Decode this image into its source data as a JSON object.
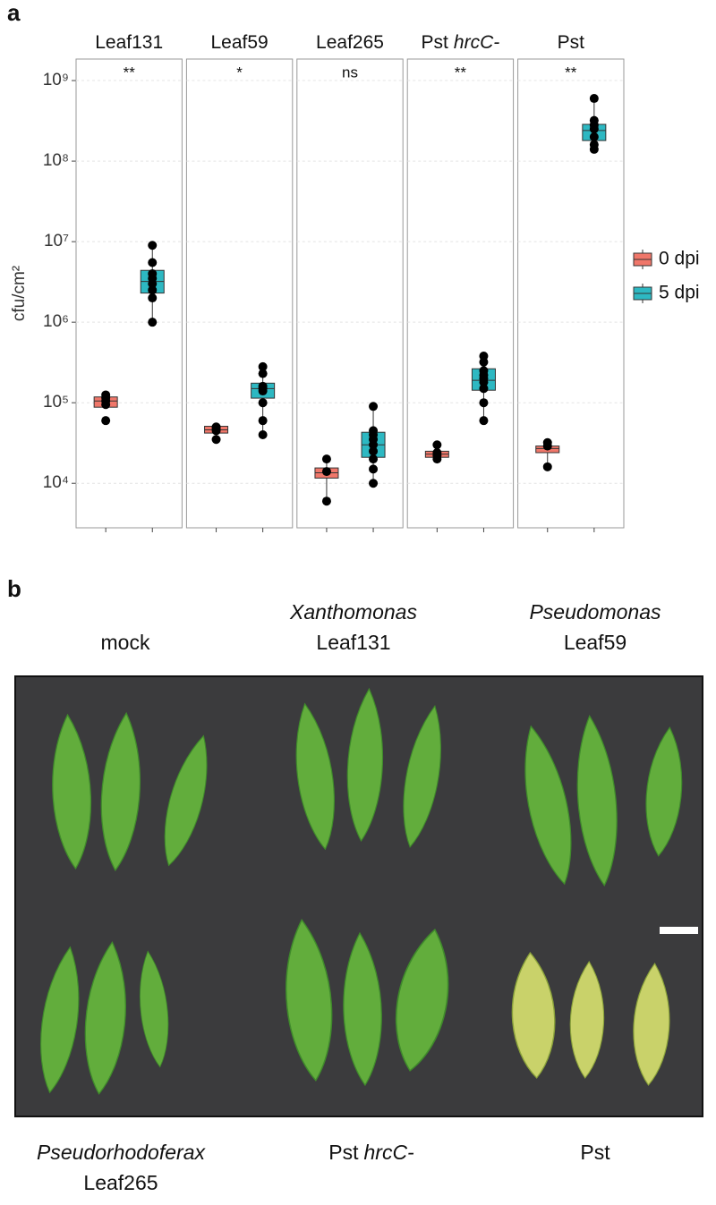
{
  "panel_labels": [
    "a",
    "b"
  ],
  "chart_data": {
    "type": "box",
    "y_label": "cfu/cm²",
    "log_y": true,
    "ylim": [
      2800,
      1850000000
    ],
    "yticks": [
      {
        "value": 10000,
        "label": "10⁴"
      },
      {
        "value": 100000,
        "label": "10⁵"
      },
      {
        "value": 1000000,
        "label": "10⁶"
      },
      {
        "value": 10000000,
        "label": "10⁷"
      },
      {
        "value": 100000000,
        "label": "10⁸"
      },
      {
        "value": 1000000000,
        "label": "10⁹"
      }
    ],
    "grid": true,
    "legend_position": "right",
    "groups": [
      {
        "name": "0 dpi",
        "color": "#f0776a"
      },
      {
        "name": "5 dpi",
        "color": "#2db8c2"
      }
    ],
    "facets": [
      {
        "label": [
          {
            "text": "Leaf131"
          }
        ],
        "significance": "**",
        "boxes": [
          {
            "min": 85000,
            "q1": 88000,
            "median": 105000,
            "q3": 118000,
            "max": 125000,
            "points": [
              125000,
              115000,
              105000,
              95000,
              60000
            ]
          },
          {
            "min": 1000000,
            "q1": 2300000,
            "median": 3200000,
            "q3": 4400000,
            "max": 9000000,
            "points": [
              9000000,
              5500000,
              4000000,
              3500000,
              3000000,
              2500000,
              2000000,
              1000000
            ]
          }
        ]
      },
      {
        "label": [
          {
            "text": "Leaf59"
          }
        ],
        "significance": "*",
        "boxes": [
          {
            "min": 35000,
            "q1": 42000,
            "median": 46000,
            "q3": 51000,
            "max": 52000,
            "points": [
              50000,
              48000,
              45000,
              35000
            ]
          },
          {
            "min": 40000,
            "q1": 114000,
            "median": 150000,
            "q3": 175000,
            "max": 280000,
            "points": [
              280000,
              230000,
              160000,
              150000,
              140000,
              100000,
              60000,
              40000
            ]
          }
        ]
      },
      {
        "label": [
          {
            "text": "Leaf265"
          }
        ],
        "significance": "ns",
        "boxes": [
          {
            "min": 6000,
            "q1": 11600,
            "median": 13500,
            "q3": 15500,
            "max": 20000,
            "points": [
              20000,
              14000,
              6000
            ]
          },
          {
            "min": 10000,
            "q1": 21000,
            "median": 30000,
            "q3": 43000,
            "max": 90000,
            "points": [
              90000,
              45000,
              40000,
              35000,
              30000,
              25000,
              20000,
              15000,
              10000
            ]
          }
        ]
      },
      {
        "label": [
          {
            "text": "Pst"
          },
          {
            "text": "hrcC-",
            "italic": true
          }
        ],
        "significance": "**",
        "boxes": [
          {
            "min": 20000,
            "q1": 21000,
            "median": 23000,
            "q3": 25000,
            "max": 30000,
            "points": [
              30000,
              24000,
              22000,
              20000
            ]
          },
          {
            "min": 60000,
            "q1": 143000,
            "median": 190000,
            "q3": 264000,
            "max": 380000,
            "points": [
              380000,
              320000,
              250000,
              220000,
              200000,
              180000,
              150000,
              100000,
              60000
            ]
          }
        ]
      },
      {
        "label": [
          {
            "text": "Pst"
          }
        ],
        "significance": "**",
        "boxes": [
          {
            "min": 16000,
            "q1": 24000,
            "median": 27000,
            "q3": 29000,
            "max": 32000,
            "points": [
              32000,
              29000,
              16000
            ]
          },
          {
            "min": 140000000,
            "q1": 180000000,
            "median": 240000000,
            "q3": 286000000,
            "max": 600000000,
            "points": [
              600000000,
              320000000,
              280000000,
              250000000,
              200000000,
              160000000,
              140000000
            ]
          }
        ]
      }
    ]
  },
  "photo": {
    "labels": [
      {
        "lines": [
          [
            {
              "text": "mock"
            }
          ]
        ]
      },
      {
        "lines": [
          [
            {
              "text": "Xanthomonas",
              "italic": true
            }
          ],
          [
            {
              "text": "Leaf131"
            }
          ]
        ]
      },
      {
        "lines": [
          [
            {
              "text": "Pseudomonas",
              "italic": true
            }
          ],
          [
            {
              "text": "Leaf59"
            }
          ]
        ]
      },
      {
        "lines": [
          [
            {
              "text": "Pseudorhodoferax",
              "italic": true
            }
          ],
          [
            {
              "text": "Leaf265"
            }
          ]
        ]
      },
      {
        "lines": [
          [
            {
              "text": "Pst"
            },
            {
              "text": "hrcC-",
              "italic": true
            }
          ]
        ]
      },
      {
        "lines": [
          [
            {
              "text": "Pst"
            }
          ]
        ]
      }
    ]
  }
}
